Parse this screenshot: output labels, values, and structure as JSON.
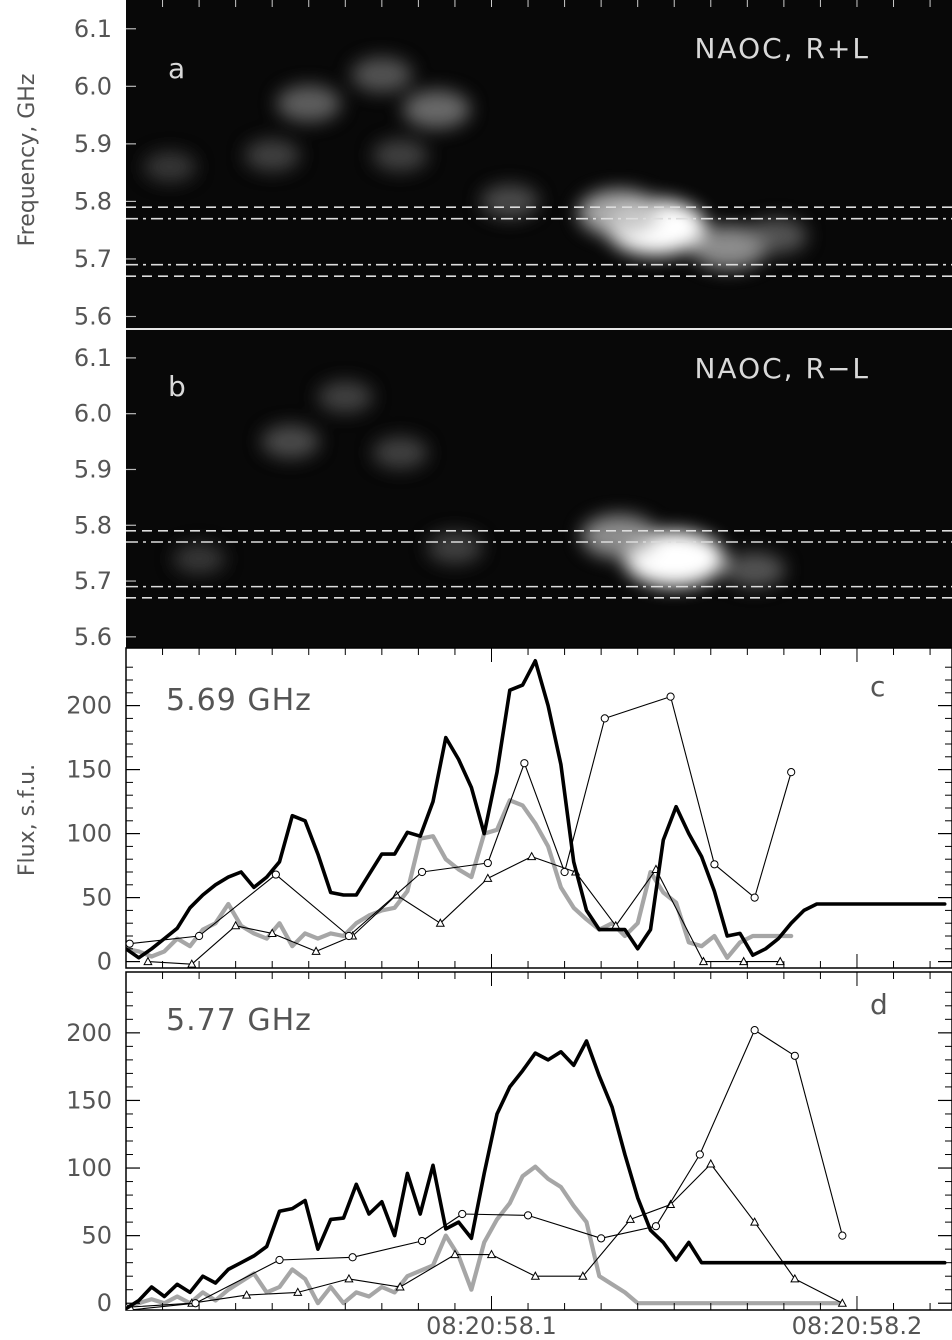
{
  "chart_data": [
    {
      "panel": "a",
      "type": "heatmap",
      "annotation": "NAOC, R+L",
      "ylabel": "Frequency, GHz",
      "yticks": [
        "6.1",
        "6.0",
        "5.9",
        "5.8",
        "5.7",
        "5.6"
      ],
      "ylim": [
        5.58,
        6.15
      ],
      "reference_lines": [
        {
          "freq": 5.79,
          "style": "dashed"
        },
        {
          "freq": 5.77,
          "style": "dash-dot"
        },
        {
          "freq": 5.69,
          "style": "dash-dot"
        },
        {
          "freq": 5.67,
          "style": "dashed"
        }
      ],
      "blobs": [
        {
          "t": 58.145,
          "f": 5.755,
          "intensity": 1.0
        },
        {
          "t": 58.135,
          "f": 5.78,
          "intensity": 0.7
        },
        {
          "t": 58.165,
          "f": 5.72,
          "intensity": 0.6
        },
        {
          "t": 58.178,
          "f": 5.74,
          "intensity": 0.35
        },
        {
          "t": 58.085,
          "f": 5.96,
          "intensity": 0.45
        },
        {
          "t": 58.05,
          "f": 5.97,
          "intensity": 0.4
        },
        {
          "t": 58.07,
          "f": 6.02,
          "intensity": 0.35
        },
        {
          "t": 58.04,
          "f": 5.88,
          "intensity": 0.25
        },
        {
          "t": 58.012,
          "f": 5.86,
          "intensity": 0.2
        },
        {
          "t": 58.105,
          "f": 5.8,
          "intensity": 0.3
        },
        {
          "t": 58.075,
          "f": 5.88,
          "intensity": 0.25
        }
      ]
    },
    {
      "panel": "b",
      "type": "heatmap",
      "annotation": "NAOC, R−L",
      "yticks": [
        "6.1",
        "6.0",
        "5.9",
        "5.8",
        "5.7",
        "5.6"
      ],
      "ylim": [
        5.58,
        6.15
      ],
      "reference_lines": [
        {
          "freq": 5.79,
          "style": "dashed"
        },
        {
          "freq": 5.77,
          "style": "dash-dot"
        },
        {
          "freq": 5.69,
          "style": "dash-dot"
        },
        {
          "freq": 5.67,
          "style": "dashed"
        }
      ],
      "blobs": [
        {
          "t": 58.15,
          "f": 5.74,
          "intensity": 1.0
        },
        {
          "t": 58.135,
          "f": 5.78,
          "intensity": 0.6
        },
        {
          "t": 58.172,
          "f": 5.72,
          "intensity": 0.35
        },
        {
          "t": 58.045,
          "f": 5.95,
          "intensity": 0.3
        },
        {
          "t": 58.06,
          "f": 6.03,
          "intensity": 0.25
        },
        {
          "t": 58.075,
          "f": 5.93,
          "intensity": 0.25
        },
        {
          "t": 58.09,
          "f": 5.76,
          "intensity": 0.25
        },
        {
          "t": 58.02,
          "f": 5.74,
          "intensity": 0.2
        }
      ]
    },
    {
      "panel": "c",
      "type": "line",
      "annotation": "5.69 GHz",
      "ylabel": "Flux, s.f.u.",
      "ylim": [
        -5,
        245
      ],
      "yticks": [
        "0",
        "50",
        "100",
        "150",
        "200"
      ],
      "xlim": [
        58.0,
        58.226
      ],
      "series": [
        {
          "style": "thick-black",
          "color": "#000000",
          "x": [
            58.0,
            58.0035,
            58.007,
            58.0105,
            58.014,
            58.0175,
            58.021,
            58.0245,
            58.028,
            58.0315,
            58.035,
            58.0385,
            58.042,
            58.0455,
            58.049,
            58.0525,
            58.056,
            58.0595,
            58.063,
            58.0665,
            58.07,
            58.0735,
            58.077,
            58.0805,
            58.084,
            58.0875,
            58.091,
            58.0945,
            58.098,
            58.1015,
            58.105,
            58.1085,
            58.112,
            58.1155,
            58.119,
            58.1225,
            58.126,
            58.1295,
            58.133,
            58.1365,
            58.14,
            58.1435,
            58.147,
            58.1505,
            58.154,
            58.1575,
            58.161,
            58.1645,
            58.168,
            58.1715,
            58.175,
            58.1785,
            58.182,
            58.1855,
            58.189,
            58.1925,
            58.196,
            58.1995,
            58.203,
            58.2065,
            58.21,
            58.2135,
            58.217,
            58.2205,
            58.224
          ],
          "y": [
            10,
            3,
            10,
            18,
            26,
            42,
            52,
            60,
            66,
            70,
            58,
            66,
            78,
            114,
            110,
            84,
            54,
            52,
            52,
            68,
            84,
            84,
            101,
            98,
            125,
            175,
            158,
            136,
            100,
            148,
            212,
            216,
            235,
            200,
            154,
            78,
            40,
            25,
            25,
            25,
            10,
            25,
            95,
            121,
            100,
            82,
            55,
            20,
            22,
            5,
            10,
            18,
            30,
            40,
            45,
            45,
            45,
            45,
            45,
            45,
            45,
            45,
            45,
            45,
            45
          ]
        },
        {
          "style": "thick-gray",
          "color": "#a6a6a6",
          "x": [
            58.0,
            58.0035,
            58.007,
            58.0105,
            58.014,
            58.0175,
            58.021,
            58.0245,
            58.028,
            58.0315,
            58.035,
            58.0385,
            58.042,
            58.0455,
            58.049,
            58.0525,
            58.056,
            58.0595,
            58.063,
            58.0665,
            58.07,
            58.0735,
            58.077,
            58.0805,
            58.084,
            58.0875,
            58.091,
            58.0945,
            58.098,
            58.1015,
            58.105,
            58.1085,
            58.112,
            58.1155,
            58.119,
            58.1225,
            58.126,
            58.1295,
            58.133,
            58.1365,
            58.14,
            58.1435,
            58.147,
            58.1505,
            58.154,
            58.1575,
            58.161,
            58.1645,
            58.168,
            58.1715,
            58.175,
            58.1785,
            58.182
          ],
          "y": [
            10,
            8,
            4,
            8,
            18,
            12,
            25,
            30,
            45,
            28,
            22,
            18,
            30,
            12,
            22,
            18,
            22,
            20,
            30,
            36,
            40,
            42,
            55,
            96,
            98,
            80,
            72,
            66,
            100,
            103,
            126,
            122,
            108,
            90,
            58,
            42,
            33,
            25,
            30,
            20,
            30,
            70,
            54,
            46,
            15,
            12,
            20,
            3,
            15,
            20,
            20,
            20,
            20
          ]
        },
        {
          "style": "thin-circles",
          "color": "#000000",
          "marker": "circle",
          "x": [
            58.001,
            58.02,
            58.041,
            58.061,
            58.081,
            58.099,
            58.109,
            58.12,
            58.131,
            58.149,
            58.161,
            58.172,
            58.182
          ],
          "y": [
            14,
            20,
            68,
            20,
            70,
            77,
            155,
            70,
            190,
            207,
            76,
            50,
            148
          ]
        },
        {
          "style": "thin-triangles",
          "color": "#000000",
          "marker": "triangle",
          "x": [
            58.006,
            58.018,
            58.03,
            58.04,
            58.052,
            58.062,
            58.074,
            58.086,
            58.099,
            58.111,
            58.123,
            58.134,
            58.145,
            58.158,
            58.169,
            58.179
          ],
          "y": [
            0,
            -2,
            28,
            22,
            8,
            20,
            52,
            30,
            65,
            82,
            70,
            28,
            72,
            0,
            0,
            0
          ]
        }
      ]
    },
    {
      "panel": "d",
      "type": "line",
      "annotation": "5.77 GHz",
      "ylim": [
        -5,
        245
      ],
      "yticks": [
        "0",
        "50",
        "100",
        "150",
        "200"
      ],
      "xlim": [
        58.0,
        58.226
      ],
      "xticks": [
        "08:20:58.1",
        "08:20:58.2"
      ],
      "series": [
        {
          "style": "thick-black",
          "color": "#000000",
          "x": [
            58.0,
            58.0035,
            58.007,
            58.0105,
            58.014,
            58.0175,
            58.021,
            58.0245,
            58.028,
            58.0315,
            58.035,
            58.0385,
            58.042,
            58.0455,
            58.049,
            58.0525,
            58.056,
            58.0595,
            58.063,
            58.0665,
            58.07,
            58.0735,
            58.077,
            58.0805,
            58.084,
            58.0875,
            58.091,
            58.0945,
            58.098,
            58.1015,
            58.105,
            58.1085,
            58.112,
            58.1155,
            58.119,
            58.1225,
            58.126,
            58.1295,
            58.133,
            58.1365,
            58.14,
            58.1435,
            58.147,
            58.1505,
            58.154,
            58.1575,
            58.161,
            58.1645,
            58.168,
            58.1715,
            58.175,
            58.1785,
            58.182,
            58.1855,
            58.189,
            58.1925,
            58.196,
            58.1995,
            58.203,
            58.2065,
            58.21,
            58.2135,
            58.217,
            58.2205,
            58.224
          ],
          "y": [
            -4,
            2,
            12,
            5,
            14,
            8,
            20,
            15,
            25,
            30,
            35,
            42,
            68,
            70,
            76,
            40,
            62,
            63,
            88,
            66,
            75,
            50,
            96,
            66,
            102,
            55,
            60,
            48,
            96,
            140,
            160,
            172,
            185,
            180,
            186,
            176,
            194,
            168,
            145,
            110,
            78,
            54,
            45,
            32,
            45,
            30,
            30,
            30,
            30,
            30,
            30,
            30,
            30,
            30,
            30,
            30,
            30,
            30,
            30,
            30,
            30,
            30,
            30,
            30,
            30
          ]
        },
        {
          "style": "thick-gray",
          "color": "#a6a6a6",
          "x": [
            58.0,
            58.0035,
            58.007,
            58.0105,
            58.014,
            58.0175,
            58.021,
            58.0245,
            58.028,
            58.0315,
            58.035,
            58.0385,
            58.042,
            58.0455,
            58.049,
            58.0525,
            58.056,
            58.0595,
            58.063,
            58.0665,
            58.07,
            58.0735,
            58.077,
            58.0805,
            58.084,
            58.0875,
            58.091,
            58.0945,
            58.098,
            58.1015,
            58.105,
            58.1085,
            58.112,
            58.1155,
            58.119,
            58.1225,
            58.126,
            58.1295,
            58.133,
            58.1365,
            58.14,
            58.1435,
            58.147,
            58.1505,
            58.154,
            58.1575,
            58.161,
            58.1645,
            58.168,
            58.1715,
            58.175,
            58.1785,
            58.182,
            58.1855,
            58.189,
            58.1925,
            58.196
          ],
          "y": [
            -3,
            0,
            3,
            0,
            5,
            0,
            8,
            2,
            10,
            16,
            22,
            8,
            12,
            25,
            18,
            0,
            12,
            0,
            8,
            5,
            12,
            8,
            20,
            24,
            28,
            50,
            35,
            10,
            45,
            62,
            74,
            94,
            101,
            92,
            86,
            72,
            60,
            20,
            14,
            8,
            0,
            0,
            0,
            0,
            0,
            0,
            0,
            0,
            0,
            0,
            0,
            0,
            0,
            0,
            0,
            0,
            0
          ]
        },
        {
          "style": "thin-circles",
          "color": "#000000",
          "marker": "circle",
          "x": [
            58.001,
            58.019,
            58.042,
            58.062,
            58.081,
            58.092,
            58.11,
            58.13,
            58.145,
            58.157,
            58.172,
            58.183,
            58.196
          ],
          "y": [
            -5,
            0,
            32,
            34,
            46,
            66,
            65,
            48,
            57,
            110,
            202,
            183,
            50
          ]
        },
        {
          "style": "thin-triangles",
          "color": "#000000",
          "marker": "triangle",
          "x": [
            58.0,
            58.018,
            58.033,
            58.047,
            58.061,
            58.075,
            58.09,
            58.1,
            58.112,
            58.125,
            58.138,
            58.149,
            58.16,
            58.172,
            58.183,
            58.196
          ],
          "y": [
            -3,
            0,
            6,
            8,
            18,
            12,
            36,
            36,
            20,
            20,
            62,
            73,
            103,
            60,
            18,
            0
          ]
        }
      ]
    }
  ]
}
